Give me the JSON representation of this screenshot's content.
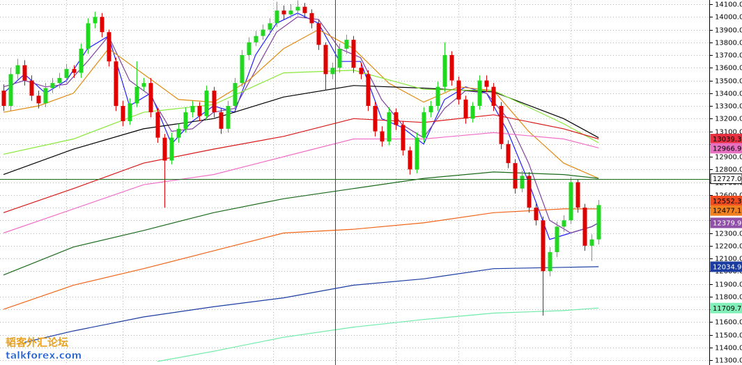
{
  "chart_data": {
    "type": "candlestick",
    "ylim": [
      11262,
      14133
    ],
    "xlim": [
      -0.5,
      100.8
    ],
    "yticks": [
      {
        "value": 11300,
        "label": "11300.0"
      },
      {
        "value": 11400,
        "label": "11400.0"
      },
      {
        "value": 11500,
        "label": "11500.0"
      },
      {
        "value": 11600,
        "label": "11600.0"
      },
      {
        "value": 11700,
        "label": "11700.0"
      },
      {
        "value": 11800,
        "label": "11800.0"
      },
      {
        "value": 11900,
        "label": "11900.0"
      },
      {
        "value": 12000,
        "label": "12000.0"
      },
      {
        "value": 12100,
        "label": "12100.0"
      },
      {
        "value": 12200,
        "label": "12200.0"
      },
      {
        "value": 12300,
        "label": "12300.0"
      },
      {
        "value": 12400,
        "label": "12400.0"
      },
      {
        "value": 12500,
        "label": "12500.0"
      },
      {
        "value": 12600,
        "label": "12600.0"
      },
      {
        "value": 12700,
        "label": "12700.0"
      },
      {
        "value": 12800,
        "label": "12800.0"
      },
      {
        "value": 12900,
        "label": "12900.0"
      },
      {
        "value": 13000,
        "label": "13000.0"
      },
      {
        "value": 13100,
        "label": "13100.0"
      },
      {
        "value": 13200,
        "label": "13200.0"
      },
      {
        "value": 13300,
        "label": "13300.0"
      },
      {
        "value": 13400,
        "label": "13400.0"
      },
      {
        "value": 13500,
        "label": "13500.0"
      },
      {
        "value": 13600,
        "label": "13600.0"
      },
      {
        "value": 13700,
        "label": "13700.0"
      },
      {
        "value": 13800,
        "label": "13800.0"
      },
      {
        "value": 13900,
        "label": "13900.0"
      },
      {
        "value": 14000,
        "label": "14000.0"
      },
      {
        "value": 14100,
        "label": "14100.0"
      }
    ],
    "grid": true,
    "xgrid": [
      9,
      17,
      38.5,
      47.4,
      56,
      65,
      73,
      81
    ],
    "up_color": "#1fd81f",
    "down_color": "#e00000",
    "candles": {
      "open": [
        13420,
        13300,
        13550,
        13620,
        13500,
        13380,
        13320,
        13440,
        13480,
        13520,
        13590,
        13560,
        13750,
        13950,
        14000,
        13880,
        13650,
        13300,
        13180,
        13320,
        13450,
        13480,
        13250,
        13050,
        12870,
        13050,
        13120,
        13250,
        13300,
        13220,
        13420,
        13250,
        13120,
        13300,
        13480,
        13700,
        13800,
        13850,
        13900,
        13950,
        14050,
        14020,
        14050,
        14080,
        14030,
        13950,
        13780,
        13550,
        13600,
        13750,
        13820,
        13600,
        13550,
        13300,
        13100,
        13020,
        13250,
        13150,
        12950,
        12800,
        13050,
        13250,
        13300,
        13450,
        13700,
        13500,
        13350,
        13200,
        13300,
        13500,
        13450,
        13300,
        13000,
        12850,
        12650,
        12750,
        12500,
        12400,
        12000,
        12150,
        12350,
        12400,
        12700,
        12500,
        12200,
        12250
      ],
      "high": [
        13470,
        13600,
        13670,
        13660,
        13540,
        13420,
        13480,
        13520,
        13560,
        13630,
        13620,
        13790,
        13990,
        14040,
        14030,
        13900,
        13680,
        13340,
        13360,
        13650,
        13520,
        13520,
        13280,
        13080,
        13090,
        13160,
        13290,
        13340,
        13330,
        13460,
        13450,
        13280,
        13340,
        13520,
        13740,
        13840,
        13890,
        13940,
        13990,
        14120,
        14090,
        14100,
        14130,
        14110,
        14060,
        13980,
        13800,
        13640,
        13790,
        13860,
        13850,
        13640,
        13580,
        13330,
        13140,
        13290,
        13280,
        13180,
        12980,
        13090,
        13290,
        13340,
        13490,
        13800,
        13730,
        13530,
        13380,
        13330,
        13540,
        13540,
        13480,
        13330,
        13030,
        12880,
        12790,
        12780,
        12530,
        12430,
        12190,
        12390,
        12440,
        12740,
        12720,
        12530,
        12290,
        12560
      ],
      "low": [
        13260,
        13260,
        13510,
        13460,
        13340,
        13280,
        13290,
        13400,
        13440,
        13480,
        13520,
        13520,
        13710,
        13910,
        13840,
        13610,
        13260,
        13140,
        13150,
        13290,
        13420,
        13210,
        13010,
        12500,
        12840,
        13010,
        13090,
        13210,
        13180,
        13190,
        13210,
        13080,
        13090,
        13270,
        13450,
        13660,
        13770,
        13820,
        13860,
        13920,
        13980,
        13990,
        14010,
        13990,
        13910,
        13740,
        13420,
        13510,
        13560,
        13710,
        13560,
        13510,
        13260,
        13060,
        12980,
        12990,
        13110,
        12910,
        12760,
        12770,
        13010,
        13210,
        13260,
        13410,
        13460,
        13310,
        13160,
        13170,
        13270,
        13410,
        13260,
        12960,
        12810,
        12610,
        12620,
        12460,
        12360,
        11650,
        11960,
        12110,
        12310,
        12370,
        12460,
        12160,
        12080,
        12210
      ],
      "close": [
        13300,
        13550,
        13620,
        13500,
        13380,
        13320,
        13440,
        13480,
        13520,
        13590,
        13560,
        13750,
        13950,
        14000,
        13880,
        13650,
        13300,
        13180,
        13320,
        13450,
        13480,
        13250,
        13050,
        12870,
        13050,
        13120,
        13250,
        13300,
        13220,
        13420,
        13250,
        13120,
        13300,
        13480,
        13700,
        13800,
        13850,
        13900,
        13950,
        14050,
        14020,
        14050,
        14080,
        14030,
        13950,
        13780,
        13550,
        13600,
        13750,
        13820,
        13600,
        13550,
        13300,
        13100,
        13020,
        13250,
        13150,
        12950,
        12800,
        13050,
        13250,
        13300,
        13450,
        13700,
        13500,
        13350,
        13200,
        13300,
        13500,
        13450,
        13300,
        13000,
        12850,
        12650,
        12750,
        12500,
        12400,
        12000,
        12150,
        12350,
        12400,
        12700,
        12500,
        12200,
        12250,
        12520
      ]
    },
    "series": [
      {
        "color": "#2020ff",
        "x": [
          0,
          3,
          6,
          9,
          12,
          15,
          18,
          21,
          24,
          27,
          30,
          33,
          36,
          39,
          42,
          45,
          48,
          51,
          54,
          57,
          60,
          63,
          66,
          69,
          72,
          75,
          78,
          81,
          84,
          85
        ],
        "values": [
          13400,
          13550,
          13400,
          13500,
          13750,
          13850,
          13300,
          13400,
          13000,
          13180,
          13300,
          13250,
          13700,
          13950,
          14030,
          13950,
          13650,
          13650,
          13200,
          13130,
          13000,
          13350,
          13450,
          13400,
          13100,
          12700,
          12250,
          12300,
          12350,
          12380
        ]
      },
      {
        "color": "#8040a0",
        "x": [
          0,
          3,
          6,
          9,
          12,
          15,
          18,
          21,
          24,
          27,
          30,
          33,
          36,
          39,
          42,
          45,
          48,
          51,
          54,
          57,
          60,
          63,
          66,
          69,
          72,
          75,
          78,
          81,
          84,
          85
        ],
        "values": [
          13450,
          13500,
          13450,
          13470,
          13650,
          13850,
          13500,
          13380,
          13100,
          13120,
          13250,
          13280,
          13580,
          13880,
          14000,
          13980,
          13750,
          13680,
          13350,
          13150,
          13050,
          13280,
          13420,
          13400,
          13200,
          12850,
          12400,
          12300,
          12350,
          12380
        ]
      },
      {
        "color": "#e08a10",
        "x": [
          0,
          5,
          10,
          15,
          20,
          25,
          30,
          35,
          40,
          45,
          50,
          55,
          60,
          65,
          70,
          75,
          80,
          85
        ],
        "values": [
          13250,
          13300,
          13400,
          13750,
          13550,
          13350,
          13330,
          13500,
          13750,
          13900,
          13750,
          13480,
          13330,
          13450,
          13420,
          13100,
          12850,
          12730
        ]
      },
      {
        "color": "#000000",
        "x": [
          0,
          10,
          20,
          30,
          40,
          50,
          60,
          70,
          80,
          85
        ],
        "values": [
          12760,
          12960,
          13120,
          13200,
          13370,
          13460,
          13440,
          13410,
          13200,
          13050
        ]
      },
      {
        "color": "#88e838",
        "x": [
          0,
          10,
          20,
          30,
          40,
          50,
          60,
          70,
          80,
          85
        ],
        "values": [
          12920,
          13040,
          13250,
          13310,
          13560,
          13580,
          13430,
          13420,
          13160,
          13010
        ]
      },
      {
        "color": "#d81818",
        "x": [
          0,
          10,
          20,
          30,
          40,
          50,
          60,
          70,
          80,
          85
        ],
        "values": [
          12460,
          12650,
          12850,
          12960,
          13060,
          13200,
          13170,
          13230,
          13120,
          13040
        ]
      },
      {
        "color": "#f070c8",
        "x": [
          0,
          10,
          20,
          30,
          40,
          50,
          60,
          70,
          80,
          85
        ],
        "values": [
          12300,
          12490,
          12680,
          12760,
          12900,
          13040,
          13040,
          13090,
          13040,
          12970
        ]
      },
      {
        "color": "#1a6a1a",
        "x": [
          0,
          10,
          20,
          30,
          40,
          50,
          60,
          70,
          80,
          85
        ],
        "values": [
          11970,
          12190,
          12320,
          12460,
          12570,
          12650,
          12730,
          12780,
          12760,
          12730
        ]
      },
      {
        "color": "#f06418",
        "x": [
          0,
          10,
          20,
          30,
          40,
          50,
          60,
          70,
          80,
          85
        ],
        "values": [
          11700,
          11890,
          12020,
          12160,
          12300,
          12330,
          12380,
          12460,
          12490,
          12490
        ]
      },
      {
        "color": "#1a3ca0",
        "x": [
          3,
          10,
          20,
          30,
          40,
          50,
          60,
          70,
          80,
          85
        ],
        "values": [
          11440,
          11530,
          11640,
          11720,
          11790,
          11890,
          11940,
          12020,
          12030,
          12035
        ]
      },
      {
        "color": "#70eaa8",
        "x": [
          22,
          30,
          40,
          50,
          60,
          70,
          80,
          85
        ],
        "values": [
          11290,
          11370,
          11480,
          11560,
          11620,
          11670,
          11690,
          11710
        ]
      }
    ],
    "crosshair": {
      "x": 47.4,
      "y": 12727.0
    },
    "price_labels": [
      {
        "value": 13039.3,
        "label": "13039.3",
        "color": "#e83040"
      },
      {
        "value": 12966.9,
        "label": "12966.9",
        "color": "#e870c0"
      },
      {
        "value": 12727.0,
        "label": "12727.0",
        "color": "#ffffff"
      },
      {
        "value": 12552.3,
        "label": "12552.3",
        "color": "#f04a20"
      },
      {
        "value": 12477.1,
        "label": "12477.1",
        "color": "#f08020"
      },
      {
        "value": 12379.9,
        "label": "12379.9",
        "color": "#9050a8"
      },
      {
        "value": 12034.9,
        "label": "12034.9",
        "color": "#1a3ca0"
      },
      {
        "value": 11709.7,
        "label": "11709.7",
        "color": "#80f0b8"
      }
    ],
    "watermark": {
      "title": "韬客外汇论坛",
      "site": "talkforex.com"
    }
  }
}
